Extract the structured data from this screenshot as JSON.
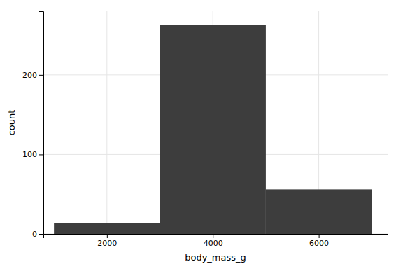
{
  "chart_data": {
    "type": "histogram",
    "bins": [
      1000,
      3000,
      5000,
      7000
    ],
    "values": [
      14,
      263,
      56
    ],
    "color": "#3d3d3d",
    "xlabel": "body_mass_g",
    "ylabel": "count",
    "xlim": [
      800,
      7300
    ],
    "ylim": [
      0,
      280
    ],
    "xticks": [
      2000,
      4000,
      6000
    ],
    "yticks": [
      0,
      100,
      200
    ],
    "grid": true
  }
}
